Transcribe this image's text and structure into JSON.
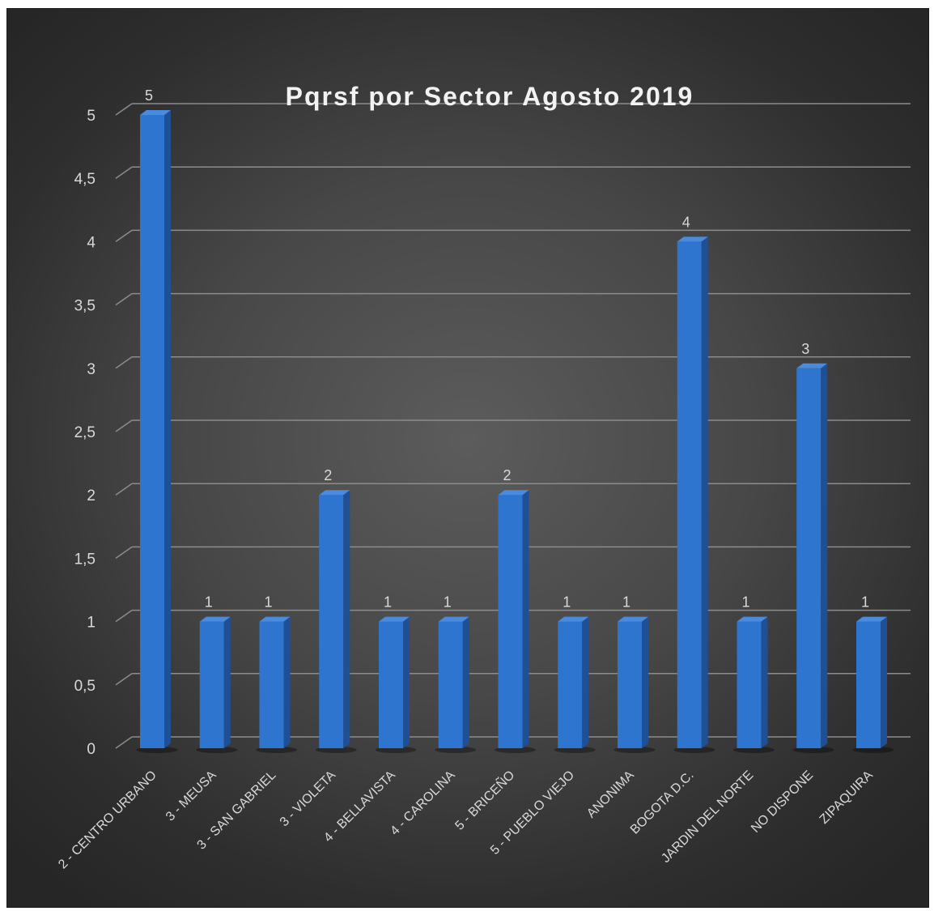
{
  "chart_data": {
    "type": "bar",
    "title": "Pqrsf por Sector Agosto 2019",
    "categories": [
      "2 - CENTRO URBANO",
      "3 - MEUSA",
      "3 - SAN GABRIEL",
      "3 - VIOLETA",
      "4 - BELLAVISTA",
      "4 - CAROLINA",
      "5 - BRICEÑO",
      "5 - PUEBLO VIEJO",
      "ANONIMA",
      "BOGOTA D.C.",
      "JARDIN DEL NORTE",
      "NO DISPONE",
      "ZIPAQUIRA"
    ],
    "values": [
      5,
      1,
      1,
      2,
      1,
      1,
      2,
      1,
      1,
      4,
      1,
      3,
      1
    ],
    "data_labels": [
      "5",
      "1",
      "1",
      "2",
      "1",
      "1",
      "2",
      "1",
      "1",
      "4",
      "1",
      "3",
      "1"
    ],
    "y_ticks": [
      "0",
      "0,5",
      "1",
      "1,5",
      "2",
      "2,5",
      "3",
      "3,5",
      "4",
      "4,5",
      "5"
    ],
    "ylim": [
      0,
      5
    ],
    "xlabel": "",
    "ylabel": "",
    "grid": true,
    "legend": "none",
    "colors": {
      "bar": "#2e75d0",
      "bar_side": "#1f4f95",
      "bar_top": "#4a8be0",
      "grid": "#8c8c8c",
      "text": "#d9d9d9"
    }
  }
}
